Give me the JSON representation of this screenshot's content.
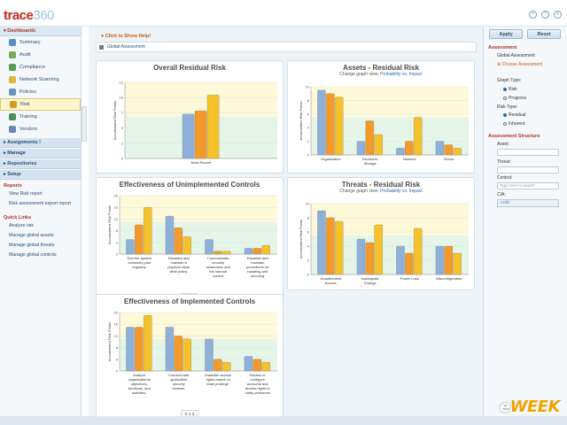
{
  "app": {
    "logo_main": "trace",
    "logo_sub": "360"
  },
  "sidebar": {
    "dashboards": "Dashboards",
    "items": [
      {
        "label": "Summary",
        "color": "#5a8ec0"
      },
      {
        "label": "Audit",
        "color": "#7aa85b"
      },
      {
        "label": "Compliance",
        "color": "#5a9d4e"
      },
      {
        "label": "Network Scanning",
        "color": "#e0b53b"
      },
      {
        "label": "Policies",
        "color": "#6b93b9"
      },
      {
        "label": "Risk",
        "color": "#d09b2a"
      },
      {
        "label": "Training",
        "color": "#4f8a5a"
      },
      {
        "label": "Vendors",
        "color": "#6a86b3"
      }
    ],
    "sections": [
      "Assignments !",
      "Manage",
      "Repositories",
      "Setup"
    ],
    "reports_title": "Reports",
    "reports": [
      "View Risk report",
      "Risk assessment export report"
    ],
    "quick_title": "Quick Links",
    "quick": [
      "Analyze risk",
      "Manage global assets",
      "Manage global threats",
      "Manage global controls"
    ]
  },
  "main": {
    "help": "Click to Show Help!",
    "breadcrumb": "Global Assessment"
  },
  "panels": {
    "p1": {
      "title": "Overall Residual Risk",
      "sub": ""
    },
    "p2": {
      "title": "Assets - Residual Risk",
      "sub": "Change graph view:",
      "link": "Probability vs. Impact"
    },
    "p3": {
      "title": "Effectiveness of Unimplemented Controls"
    },
    "p4": {
      "title": "Threats - Residual Risk",
      "sub": "Change graph view:",
      "link": "Probability vs. Impact"
    },
    "p5": {
      "title": "Effectiveness of Implemented Controls"
    },
    "ylabel": "Accumulated Risk Points",
    "tools": "C 1 4"
  },
  "chart_data": [
    {
      "type": "bar",
      "title": "Overall Residual Risk",
      "categories": [
        "Most Recent"
      ],
      "series": [
        {
          "values": [
            7
          ]
        },
        {
          "values": [
            7.5
          ]
        },
        {
          "values": [
            10
          ]
        }
      ],
      "ylim": [
        0,
        12
      ]
    },
    {
      "type": "bar",
      "title": "Assets - Residual Risk",
      "categories": [
        "Organization",
        "Electronic Storage",
        "Network",
        "Server"
      ],
      "series": [
        {
          "values": [
            9.5,
            2,
            1,
            2
          ]
        },
        {
          "values": [
            9,
            5,
            2,
            1.5
          ]
        },
        {
          "values": [
            8.5,
            3,
            5.5,
            1
          ]
        }
      ],
      "ylim": [
        0,
        10
      ]
    },
    {
      "type": "bar",
      "title": "Effectiveness of Unimplemented Controls",
      "categories": [
        "Test the system continuity plan regularly.",
        "Establish and maintain a physical clean desk policy.",
        "Communicate security awareness and the internal control framework to all constituents.",
        "Establish and maintain procedures for handling and securing computer equipment"
      ],
      "series": [
        {
          "values": [
            5,
            13,
            5,
            2
          ]
        },
        {
          "values": [
            10,
            9,
            1,
            2
          ]
        },
        {
          "values": [
            16,
            6,
            1,
            3
          ]
        }
      ],
      "ylim": [
        0,
        20
      ]
    },
    {
      "type": "bar",
      "title": "Threats - Residual Risk",
      "categories": [
        "Unauthorized Access",
        "Inadequate Change Management",
        "Power Loss",
        "Misconfiguration"
      ],
      "series": [
        {
          "values": [
            9,
            5,
            4,
            4
          ]
        },
        {
          "values": [
            8,
            4.5,
            3,
            4
          ]
        },
        {
          "values": [
            7.5,
            7,
            6.5,
            3
          ]
        }
      ],
      "ylim": [
        0,
        10
      ]
    },
    {
      "type": "bar",
      "title": "Effectiveness of Implemented Controls",
      "categories": [
        "Analyze organizational objectives, functions, and activities.",
        "Conduct web application security reviews.",
        "Establish access rights based on least privilege.",
        "Review or configure accounts and access rights to notify personnel about changes"
      ],
      "series": [
        {
          "values": [
            15,
            15,
            11,
            5
          ]
        },
        {
          "values": [
            15,
            12,
            4,
            4
          ]
        },
        {
          "values": [
            19,
            11,
            3,
            3
          ]
        }
      ],
      "ylim": [
        0,
        20
      ]
    }
  ],
  "right": {
    "apply": "Apply",
    "reset": "Reset",
    "assessment_title": "Assessment",
    "global": "Global Assessment",
    "choose": "Choose Assessment",
    "graph_type": "Graph Type:",
    "graph_opts": [
      "Risk",
      "Progress"
    ],
    "risk_type": "Risk Type:",
    "risk_opts": [
      "Residual",
      "Inherent"
    ],
    "structure_title": "Assessment Structure",
    "asset": "Asset:",
    "threat": "Threat:",
    "control": "Control:",
    "control_placeholder": "Type here to search",
    "cia": "CIA:",
    "cia_value": "<All>"
  },
  "watermark": {
    "e": "e",
    "week": "WEEK"
  }
}
